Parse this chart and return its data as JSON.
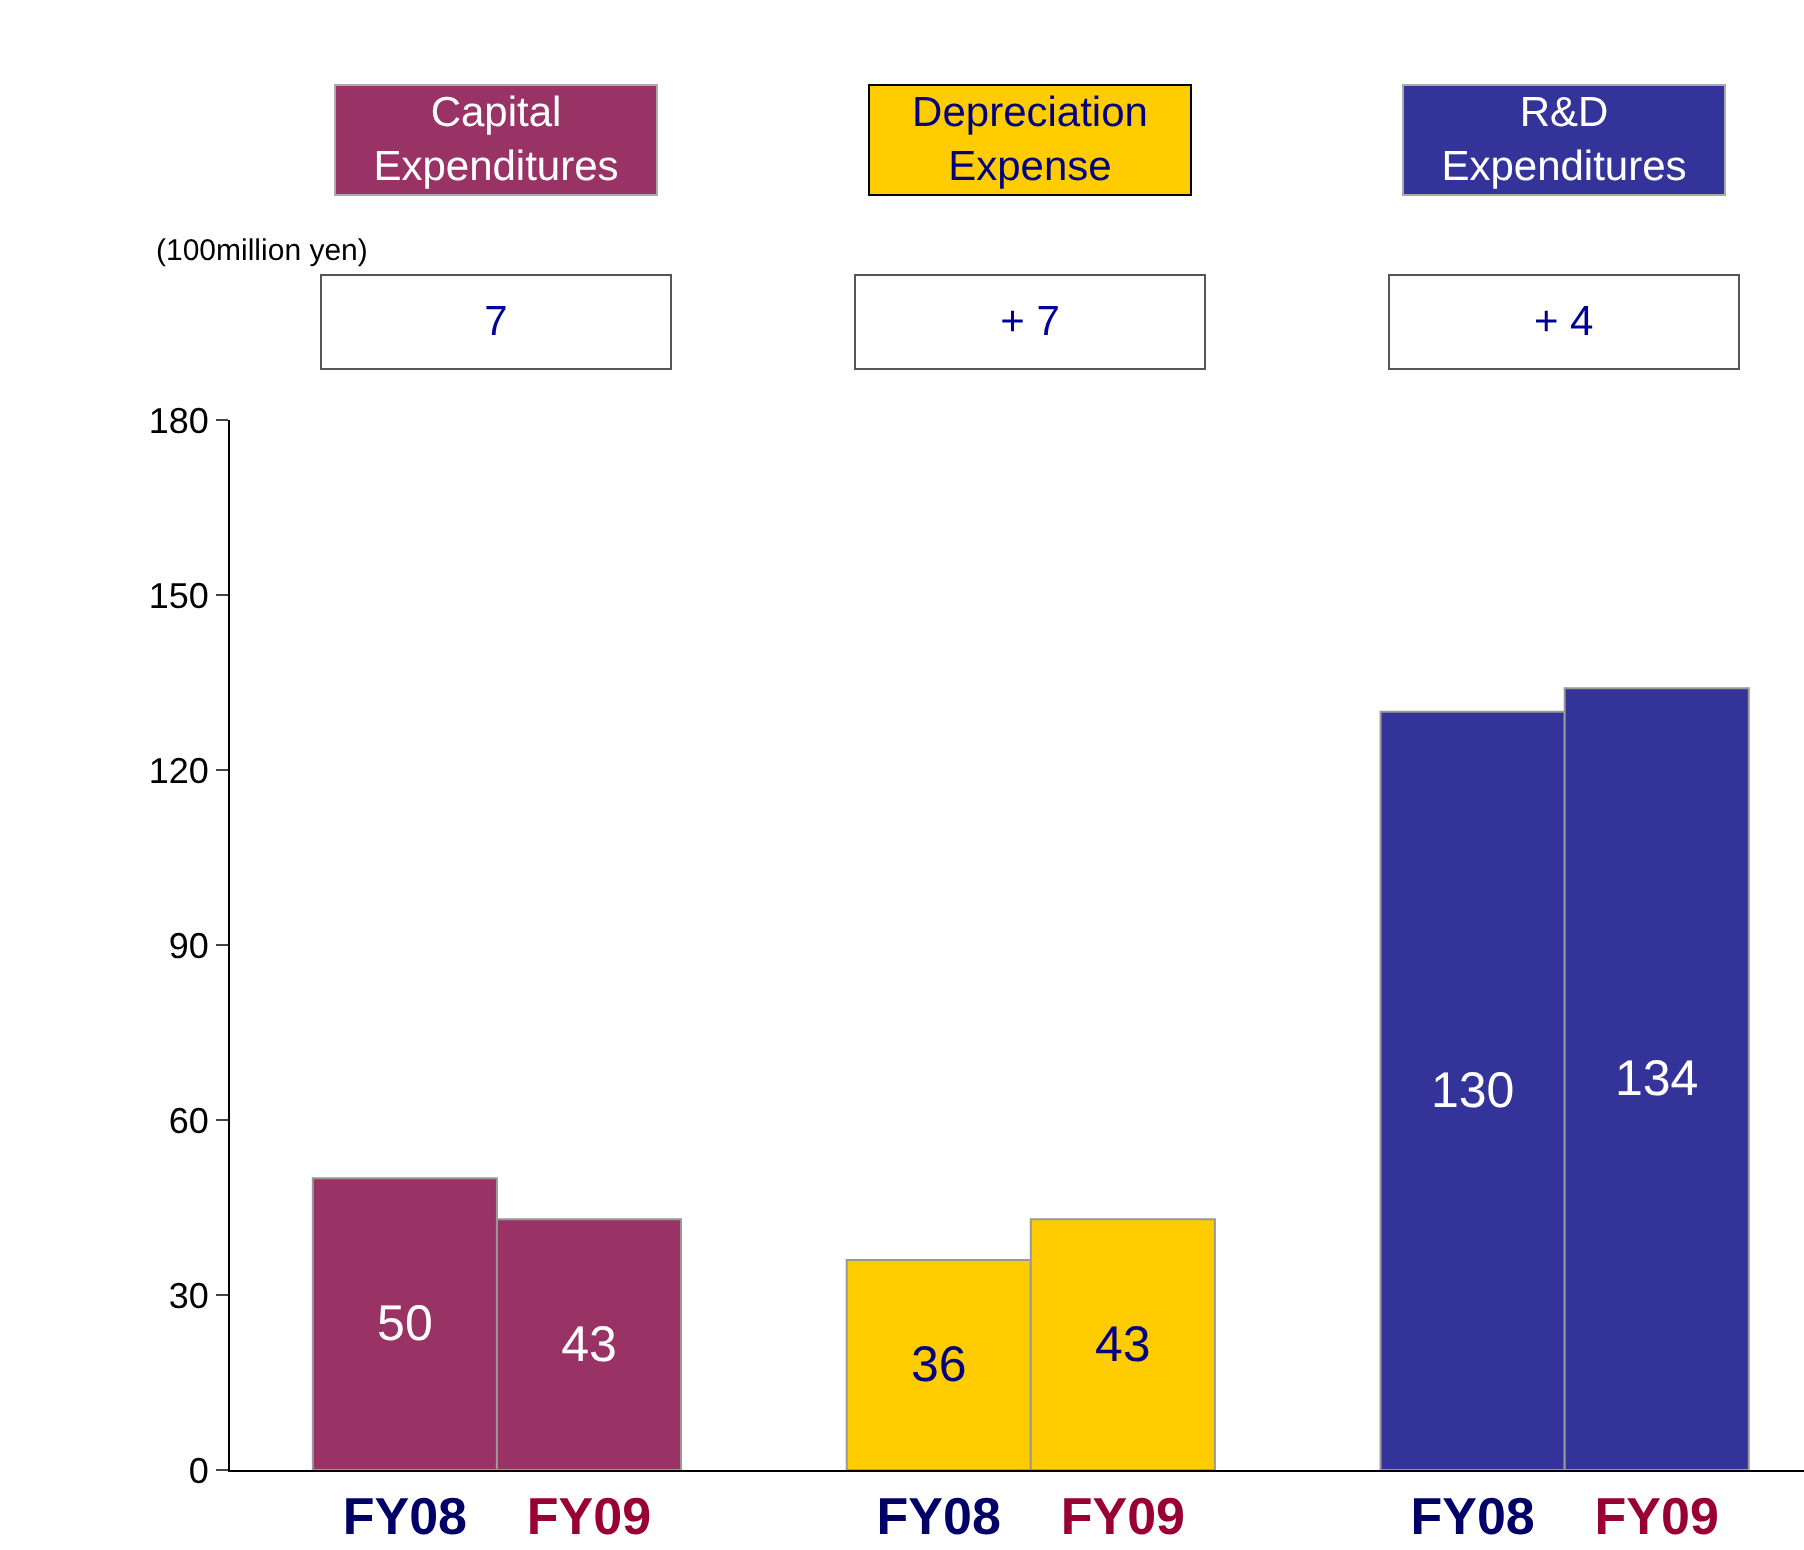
{
  "chart_data": {
    "type": "bar",
    "categories": [
      "FY08",
      "FY09",
      "FY08",
      "FY09",
      "FY08",
      "FY09"
    ],
    "values": [
      50,
      43,
      36,
      43,
      130,
      134
    ],
    "colors": [
      "#993366",
      "#993366",
      "#ffcc00",
      "#ffcc00",
      "#333399",
      "#333399"
    ],
    "ylim": [
      0,
      180
    ],
    "yticks": [
      0,
      30,
      60,
      90,
      120,
      150,
      180
    ],
    "grid": false,
    "data_labels": true,
    "annotations": [
      "Capital Expenditures",
      "Depreciation Expense",
      "R&D Expenditures",
      "(100million yen)",
      "7",
      "+ 7",
      "+ 4"
    ]
  }
}
